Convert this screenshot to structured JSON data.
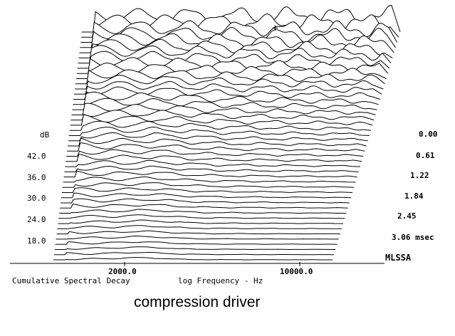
{
  "chart_data": {
    "type": "waterfall",
    "title": "Cumulative Spectral Decay",
    "xlabel": "log Frequency - Hz",
    "ylabel": "dB",
    "zlabel": "msec",
    "x_scale": "log",
    "x_ticks": [
      "2000.0",
      "10000.0"
    ],
    "x_tick_values": [
      2000,
      10000
    ],
    "y_ticks": [
      "42.0",
      "36.0",
      "30.0",
      "24.0",
      "18.0"
    ],
    "y_tick_values": [
      42,
      36,
      30,
      24,
      18
    ],
    "z_ticks": [
      "0.00",
      "0.61",
      "1.22",
      "1.84",
      "2.45",
      "3.06"
    ],
    "z_tick_values": [
      0.0,
      0.61,
      1.22,
      1.84,
      2.45,
      3.06
    ],
    "z_unit": "msec",
    "slices": 45,
    "vendor_label": "MLSSA",
    "caption": "compression driver"
  }
}
